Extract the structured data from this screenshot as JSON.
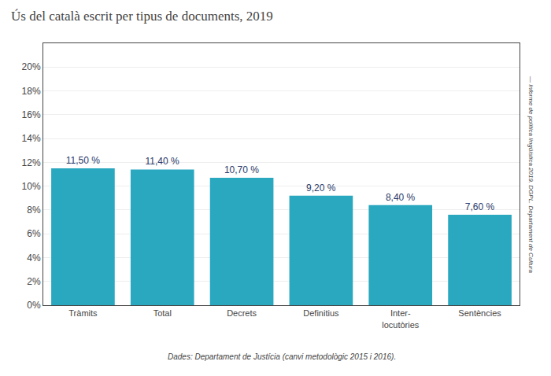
{
  "chart_data": {
    "type": "bar",
    "title": "Ús del català escrit per tipus de documents, 2019",
    "categories": [
      "Tràmits",
      "Total",
      "Decrets",
      "Definitius",
      "Inter-\nlocutòries",
      "Sentències"
    ],
    "values": [
      11.5,
      11.4,
      10.7,
      9.2,
      8.4,
      7.6
    ],
    "value_labels": [
      "11,50 %",
      "11,40 %",
      "10,70 %",
      "9,20 %",
      "8,40 %",
      "7,60 %"
    ],
    "data_labels": true,
    "color": "#29A8C0",
    "ylim": [
      0,
      22
    ],
    "yticks": [
      {
        "value": 0,
        "label": "0%"
      },
      {
        "value": 2,
        "label": "2%"
      },
      {
        "value": 4,
        "label": "4%"
      },
      {
        "value": 6,
        "label": "6%"
      },
      {
        "value": 8,
        "label": "8%"
      },
      {
        "value": 10,
        "label": "10%"
      },
      {
        "value": 12,
        "label": "12%"
      },
      {
        "value": 14,
        "label": "14%"
      },
      {
        "value": 16,
        "label": "16%"
      },
      {
        "value": 18,
        "label": "18%"
      },
      {
        "value": 20,
        "label": "20%"
      }
    ],
    "grid": true,
    "annotations": [
      "Dades: Departament de Justícia (canvi metodològic 2015 i 2016).",
      "— Informe de política lingüística 2019. DGPL. Departament de Cultura"
    ]
  }
}
